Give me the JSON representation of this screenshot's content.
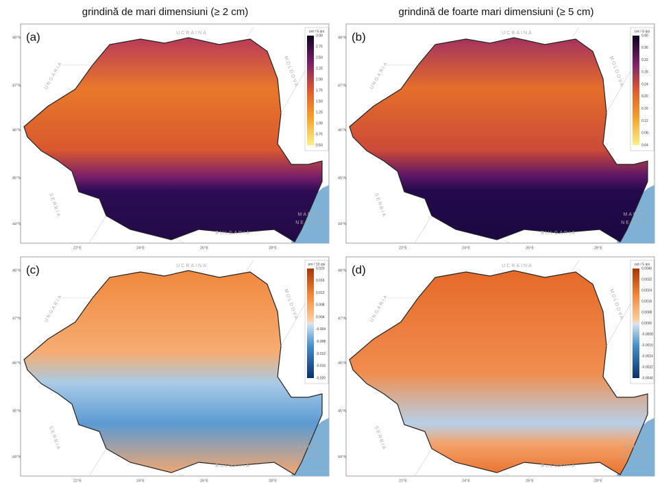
{
  "titles": [
    "grindină de mari dimensiuni (≥ 2 cm)",
    "grindină de foarte mari dimensiuni (≥ 5 cm)"
  ],
  "map_labels": {
    "ukraine": "UCRAINA",
    "moldova": "MOLDOVA",
    "hungary": "UNGARIA",
    "serbia": "SERBIA",
    "bulgaria": "BULGARIA",
    "sea1": "MAREA",
    "sea2": "NEAGRĂ"
  },
  "lat_labels": [
    "48°N",
    "47°N",
    "46°N",
    "45°N",
    "44°N"
  ],
  "lon_labels": [
    "22°E",
    "24°E",
    "26°E",
    "28°E"
  ],
  "panels": [
    {
      "label": "(a)",
      "unit": "ore / 5 ani",
      "ticks": [
        "3.00",
        "2.75",
        "2.50",
        "2.25",
        "2.00",
        "1.75",
        "1.50",
        "1.25",
        "1.00",
        "0.75",
        "0.50"
      ]
    },
    {
      "label": "(b)",
      "unit": "ore / 5 ani",
      "ticks": [
        "0.40",
        "0.36",
        "0.32",
        "0.28",
        "0.24",
        "0.20",
        "0.16",
        "0.12",
        "0.08",
        "0.04"
      ]
    },
    {
      "label": "(c)",
      "unit": "ore / 10 ani",
      "ticks": [
        "0.020",
        "0.016",
        "0.012",
        "0.008",
        "0.004",
        "-0.004",
        "-0.008",
        "-0.012",
        "-0.016",
        "-0.020"
      ]
    },
    {
      "label": "(d)",
      "unit": "ore / 5 ani",
      "ticks": [
        "0.0040",
        "0.0032",
        "0.0024",
        "0.0016",
        "0.0008",
        "0.0000",
        "-0.0008",
        "-0.0016",
        "-0.0024",
        "-0.0032",
        "-0.0040"
      ]
    }
  ]
}
